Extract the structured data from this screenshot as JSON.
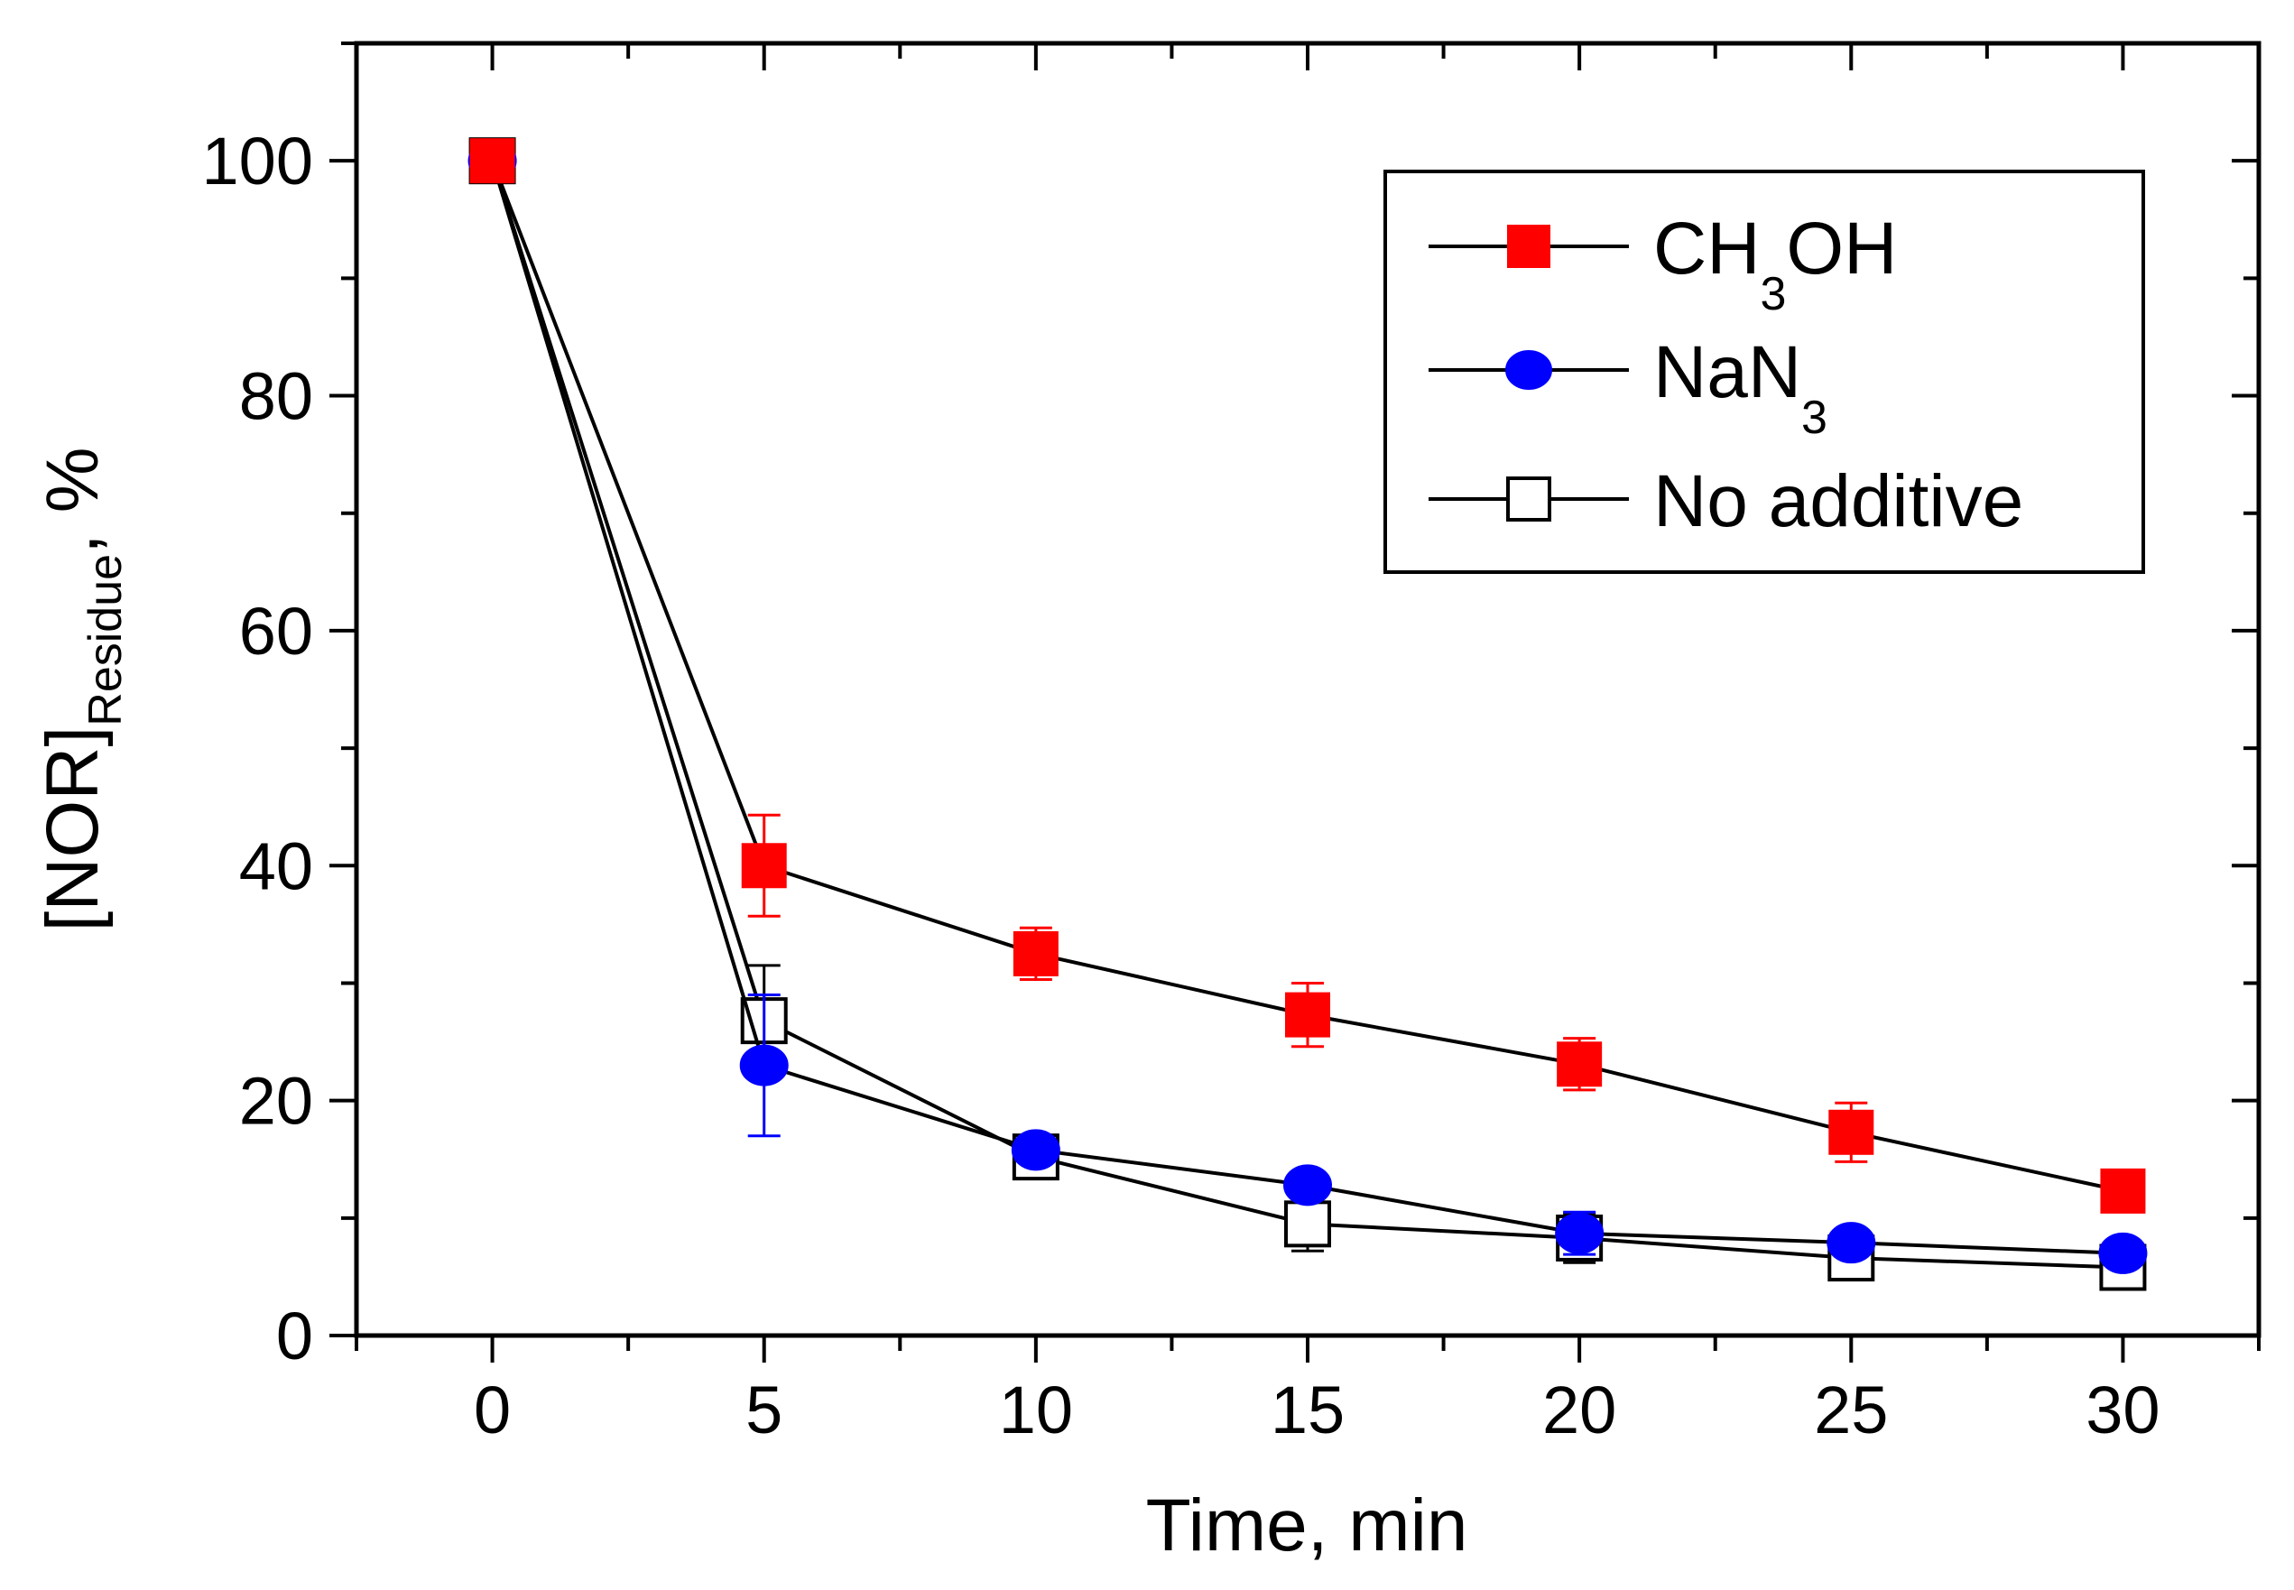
{
  "chart_data": {
    "type": "line",
    "title": "",
    "xlabel": "Time, min",
    "ylabel": {
      "main": "[NOR]",
      "subscript": "Residue",
      "suffix": ", %"
    },
    "xlim": [
      -2.5,
      32.5
    ],
    "ylim": [
      0,
      110
    ],
    "x_ticks": [
      0,
      5,
      10,
      15,
      20,
      25,
      30
    ],
    "x_tick_labels": [
      "0",
      "5",
      "10",
      "15",
      "20",
      "25",
      "30"
    ],
    "y_ticks": [
      0,
      20,
      40,
      60,
      80,
      100
    ],
    "y_tick_labels": [
      "0",
      "20",
      "40",
      "60",
      "80",
      "100"
    ],
    "grid": false,
    "legend_position": "top-right",
    "series": [
      {
        "name": "CH3OH",
        "label_main": "CH",
        "label_sub": "3",
        "label_tail": "OH",
        "marker": "filled-square",
        "color": "#ff0000",
        "x": [
          0,
          5,
          10,
          15,
          20,
          25,
          30
        ],
        "values": [
          100,
          40,
          32.5,
          27.3,
          23.1,
          17.3,
          12.3
        ],
        "errors": [
          0,
          4.3,
          2.2,
          2.7,
          2.2,
          2.5,
          0.5
        ]
      },
      {
        "name": "NaN3",
        "label_main": "NaN",
        "label_sub": "3",
        "label_tail": "",
        "marker": "filled-circle",
        "color": "#0000ff",
        "x": [
          0,
          5,
          10,
          15,
          20,
          25,
          30
        ],
        "values": [
          100,
          23,
          15.8,
          12.8,
          8.7,
          7.9,
          7.0
        ],
        "errors": [
          0,
          6.0,
          1.2,
          0.8,
          1.8,
          1.0,
          0.5
        ]
      },
      {
        "name": "No additive",
        "label_main": "No additive",
        "label_sub": "",
        "label_tail": "",
        "marker": "open-square",
        "color": "#000000",
        "x": [
          0,
          5,
          10,
          15,
          20,
          25,
          30
        ],
        "values": [
          100,
          26.8,
          15.2,
          9.5,
          8.3,
          6.6,
          5.8
        ],
        "errors": [
          0,
          4.7,
          1.6,
          2.3,
          2.1,
          1.2,
          1.0
        ]
      }
    ]
  }
}
